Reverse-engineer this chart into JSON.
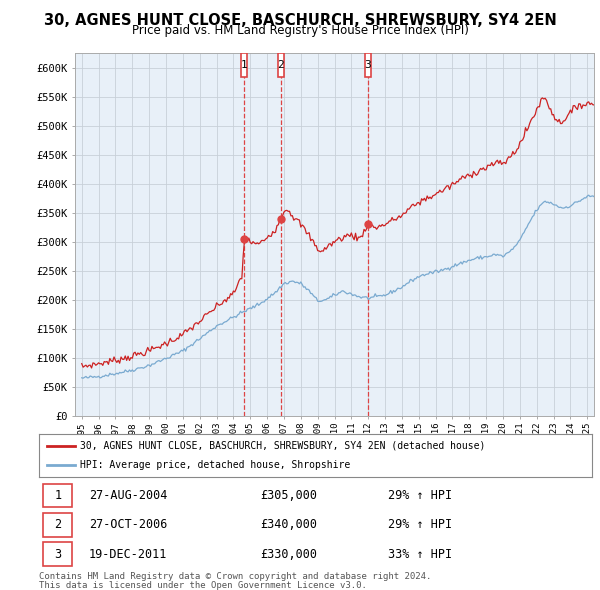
{
  "title": "30, AGNES HUNT CLOSE, BASCHURCH, SHREWSBURY, SY4 2EN",
  "subtitle": "Price paid vs. HM Land Registry's House Price Index (HPI)",
  "legend_line1": "30, AGNES HUNT CLOSE, BASCHURCH, SHREWSBURY, SY4 2EN (detached house)",
  "legend_line2": "HPI: Average price, detached house, Shropshire",
  "transactions": [
    {
      "num": 1,
      "date": "27-AUG-2004",
      "price": 305000,
      "pct": "29%",
      "direction": "↑",
      "year_x": 2004.65
    },
    {
      "num": 2,
      "date": "27-OCT-2006",
      "price": 340000,
      "pct": "29%",
      "direction": "↑",
      "year_x": 2006.82
    },
    {
      "num": 3,
      "date": "19-DEC-2011",
      "price": 330000,
      "pct": "33%",
      "direction": "↑",
      "year_x": 2011.97
    }
  ],
  "footer_line1": "Contains HM Land Registry data © Crown copyright and database right 2024.",
  "footer_line2": "This data is licensed under the Open Government Licence v3.0.",
  "ylim": [
    0,
    625000
  ],
  "yticks": [
    0,
    50000,
    100000,
    150000,
    200000,
    250000,
    300000,
    350000,
    400000,
    450000,
    500000,
    550000,
    600000
  ],
  "background_color": "#ffffff",
  "chart_bg_color": "#e8f0f8",
  "grid_color": "#c8d0d8",
  "line_color_hpi": "#7aaad0",
  "line_color_price": "#cc2222",
  "transaction_line_color": "#dd4444",
  "xlim_min": 1994.6,
  "xlim_max": 2025.4
}
